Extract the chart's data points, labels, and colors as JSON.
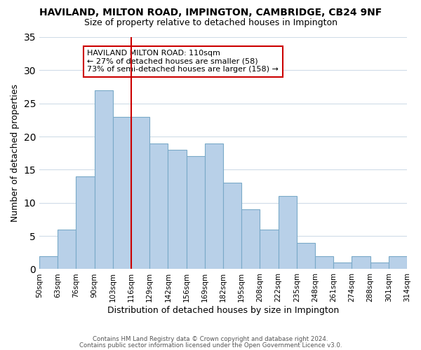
{
  "title": "HAVILAND, MILTON ROAD, IMPINGTON, CAMBRIDGE, CB24 9NF",
  "subtitle": "Size of property relative to detached houses in Impington",
  "xlabel": "Distribution of detached houses by size in Impington",
  "ylabel": "Number of detached properties",
  "bin_labels": [
    "50sqm",
    "63sqm",
    "76sqm",
    "90sqm",
    "103sqm",
    "116sqm",
    "129sqm",
    "142sqm",
    "156sqm",
    "169sqm",
    "182sqm",
    "195sqm",
    "208sqm",
    "222sqm",
    "235sqm",
    "248sqm",
    "261sqm",
    "274sqm",
    "288sqm",
    "301sqm",
    "314sqm"
  ],
  "bar_values": [
    2,
    6,
    14,
    27,
    23,
    23,
    19,
    18,
    17,
    19,
    13,
    9,
    6,
    11,
    4,
    2,
    1,
    2,
    1,
    2
  ],
  "bar_color": "#b8d0e8",
  "bar_edge_color": "#7aaac8",
  "vline_color": "#cc0000",
  "vline_index": 5,
  "ylim": [
    0,
    35
  ],
  "yticks": [
    0,
    5,
    10,
    15,
    20,
    25,
    30,
    35
  ],
  "annotation_title": "HAVILAND MILTON ROAD: 110sqm",
  "annotation_line1": "← 27% of detached houses are smaller (58)",
  "annotation_line2": "73% of semi-detached houses are larger (158) →",
  "annotation_box_color": "#ffffff",
  "annotation_box_edge": "#cc0000",
  "footer1": "Contains HM Land Registry data © Crown copyright and database right 2024.",
  "footer2": "Contains public sector information licensed under the Open Government Licence v3.0.",
  "background_color": "#ffffff",
  "grid_color": "#d0dce8"
}
